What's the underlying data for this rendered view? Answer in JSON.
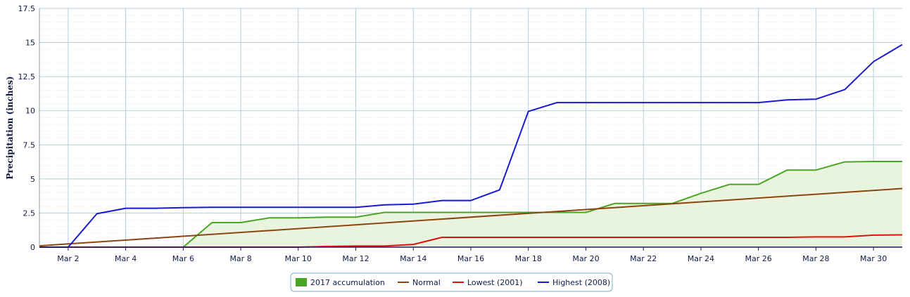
{
  "chart_data": {
    "type": "line",
    "title": "",
    "xlabel": "",
    "ylabel": "Precipitation (inches)",
    "ylim": [
      0,
      17.5
    ],
    "xlim": [
      1,
      31
    ],
    "y_ticks": [
      "0",
      "2.5",
      "5",
      "7.5",
      "10",
      "12.5",
      "15",
      "17.5"
    ],
    "y_tick_values": [
      0,
      2.5,
      5,
      7.5,
      10,
      12.5,
      15,
      17.5
    ],
    "x_ticks": [
      "Mar 2",
      "Mar 4",
      "Mar 6",
      "Mar 8",
      "Mar 10",
      "Mar 12",
      "Mar 14",
      "Mar 16",
      "Mar 18",
      "Mar 20",
      "Mar 22",
      "Mar 24",
      "Mar 26",
      "Mar 28",
      "Mar 30"
    ],
    "x_tick_values": [
      2,
      4,
      6,
      8,
      10,
      12,
      14,
      16,
      18,
      20,
      22,
      24,
      26,
      28,
      30
    ],
    "grid": true,
    "legend_position": "bottom-center",
    "series": [
      {
        "name": "2017 accumulation",
        "kind": "area",
        "color": "#4aa526",
        "fill": "#e8f4dd",
        "x": [
          1,
          2,
          3,
          4,
          5,
          6,
          7,
          8,
          9,
          10,
          11,
          12,
          13,
          14,
          15,
          16,
          17,
          18,
          19,
          20,
          21,
          22,
          23,
          24,
          25,
          26,
          27,
          28,
          29,
          30,
          31
        ],
        "values": [
          0,
          0,
          0,
          0,
          0,
          0,
          1.8,
          1.8,
          2.15,
          2.15,
          2.2,
          2.2,
          2.55,
          2.55,
          2.55,
          2.55,
          2.55,
          2.55,
          2.55,
          2.55,
          3.2,
          3.2,
          3.2,
          3.95,
          4.6,
          4.6,
          5.65,
          5.65,
          6.25,
          6.28,
          6.28
        ]
      },
      {
        "name": "Normal",
        "kind": "line",
        "color": "#8b4513",
        "x": [
          1,
          31
        ],
        "values": [
          0.1,
          4.3
        ]
      },
      {
        "name": "Lowest (2001)",
        "kind": "line",
        "color": "#e0120e",
        "x": [
          1,
          2,
          3,
          4,
          5,
          6,
          7,
          8,
          9,
          10,
          11,
          12,
          13,
          14,
          15,
          16,
          17,
          18,
          19,
          20,
          21,
          22,
          23,
          24,
          25,
          26,
          27,
          28,
          29,
          30,
          31
        ],
        "values": [
          0,
          0,
          0,
          0,
          0,
          0,
          0,
          0,
          0,
          0,
          0.05,
          0.08,
          0.08,
          0.2,
          0.72,
          0.72,
          0.72,
          0.72,
          0.72,
          0.72,
          0.72,
          0.72,
          0.72,
          0.72,
          0.72,
          0.72,
          0.72,
          0.75,
          0.75,
          0.88,
          0.9
        ]
      },
      {
        "name": "Highest (2008)",
        "kind": "line",
        "color": "#1a1ad6",
        "x": [
          1,
          2,
          3,
          4,
          5,
          6,
          7,
          8,
          9,
          10,
          11,
          12,
          13,
          14,
          15,
          16,
          17,
          18,
          19,
          20,
          21,
          22,
          23,
          24,
          25,
          26,
          27,
          28,
          29,
          30,
          31
        ],
        "values": [
          0,
          0,
          2.45,
          2.85,
          2.85,
          2.9,
          2.92,
          2.92,
          2.92,
          2.92,
          2.92,
          2.92,
          3.1,
          3.15,
          3.42,
          3.42,
          4.2,
          9.95,
          10.6,
          10.6,
          10.6,
          10.6,
          10.6,
          10.6,
          10.6,
          10.6,
          10.8,
          10.85,
          11.55,
          13.6,
          14.85
        ]
      }
    ]
  }
}
